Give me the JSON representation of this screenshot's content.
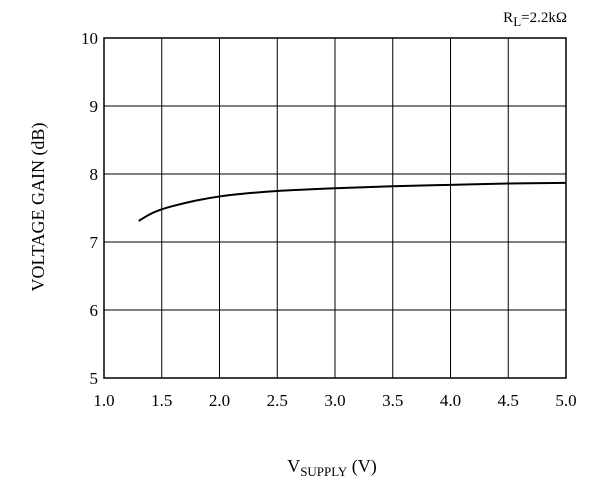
{
  "chart_data": {
    "type": "line",
    "title": "",
    "annotation": {
      "main": "R",
      "sub": "L",
      "rest": "=2.2kΩ"
    },
    "xlabel": {
      "main": "V",
      "sub": "SUPPLY",
      "rest": " (V)"
    },
    "ylabel": "VOLTAGE GAIN (dB)",
    "xlim": [
      1.0,
      5.0
    ],
    "ylim": [
      5,
      10
    ],
    "xticks": [
      "1.0",
      "1.5",
      "2.0",
      "2.5",
      "3.0",
      "3.5",
      "4.0",
      "4.5",
      "5.0"
    ],
    "yticks": [
      "5",
      "6",
      "7",
      "8",
      "9",
      "10"
    ],
    "grid": true,
    "series": [
      {
        "x": [
          1.3,
          1.4,
          1.5,
          1.6,
          1.8,
          2.0,
          2.2,
          2.5,
          3.0,
          3.5,
          4.0,
          4.5,
          5.0
        ],
        "y": [
          7.31,
          7.41,
          7.48,
          7.53,
          7.61,
          7.67,
          7.71,
          7.75,
          7.79,
          7.82,
          7.84,
          7.86,
          7.87
        ]
      }
    ]
  }
}
